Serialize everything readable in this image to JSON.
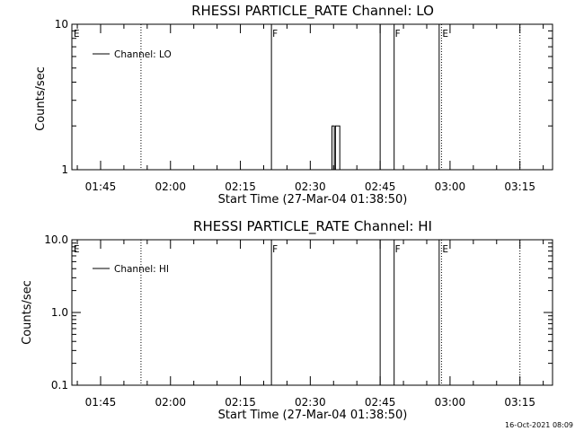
{
  "footer": "16-Oct-2021 08:09",
  "chart_data": [
    {
      "type": "line",
      "title": "RHESSI PARTICLE_RATE Channel: LO",
      "xlabel": "Start Time (27-Mar-04 01:38:50)",
      "ylabel": "Counts/sec",
      "yscale": "log",
      "ylim": [
        1,
        10
      ],
      "ytick_labels": [
        "1",
        "10"
      ],
      "x_tick_labels": [
        "01:45",
        "02:00",
        "02:15",
        "02:30",
        "02:45",
        "03:00",
        "03:15"
      ],
      "xlim": [
        "01:38:50",
        "03:22:00"
      ],
      "legend": {
        "position": "top-left",
        "entries": [
          "Channel: LO"
        ]
      },
      "series": [
        {
          "name": "Channel: LO",
          "points": [
            [
              "02:34:40",
              1
            ],
            [
              "02:34:40",
              2
            ],
            [
              "02:35:10",
              2
            ],
            [
              "02:35:10",
              1
            ],
            [
              "02:35:25",
              1
            ],
            [
              "02:35:25",
              2
            ],
            [
              "02:36:20",
              2
            ],
            [
              "02:36:20",
              1
            ]
          ]
        }
      ],
      "events": [
        {
          "time": "01:39:00",
          "label": "E",
          "style": "none"
        },
        {
          "time": "01:53:40",
          "label": "",
          "style": "dotted"
        },
        {
          "time": "02:21:40",
          "label": "F",
          "style": "solid"
        },
        {
          "time": "02:45:00",
          "label": "",
          "style": "solid"
        },
        {
          "time": "02:48:00",
          "label": "F",
          "style": "solid"
        },
        {
          "time": "02:57:40",
          "label": "",
          "style": "solid"
        },
        {
          "time": "02:58:10",
          "label": "E",
          "style": "dotted"
        },
        {
          "time": "03:15:00",
          "label": "",
          "style": "dotted"
        }
      ]
    },
    {
      "type": "line",
      "title": "RHESSI PARTICLE_RATE Channel: HI",
      "xlabel": "Start Time (27-Mar-04 01:38:50)",
      "ylabel": "Counts/sec",
      "yscale": "log",
      "ylim": [
        0.1,
        10
      ],
      "ytick_labels": [
        "0.1",
        "1.0",
        "10.0"
      ],
      "x_tick_labels": [
        "01:45",
        "02:00",
        "02:15",
        "02:30",
        "02:45",
        "03:00",
        "03:15"
      ],
      "xlim": [
        "01:38:50",
        "03:22:00"
      ],
      "legend": {
        "position": "top-left",
        "entries": [
          "Channel: HI"
        ]
      },
      "series": [
        {
          "name": "Channel: HI",
          "points": []
        }
      ],
      "events": [
        {
          "time": "01:39:00",
          "label": "E",
          "style": "none"
        },
        {
          "time": "01:53:40",
          "label": "",
          "style": "dotted"
        },
        {
          "time": "02:21:40",
          "label": "F",
          "style": "solid"
        },
        {
          "time": "02:45:00",
          "label": "",
          "style": "solid"
        },
        {
          "time": "02:48:00",
          "label": "F",
          "style": "solid"
        },
        {
          "time": "02:57:40",
          "label": "",
          "style": "solid"
        },
        {
          "time": "02:58:10",
          "label": "E",
          "style": "dotted"
        },
        {
          "time": "03:15:00",
          "label": "",
          "style": "dotted"
        }
      ]
    }
  ]
}
